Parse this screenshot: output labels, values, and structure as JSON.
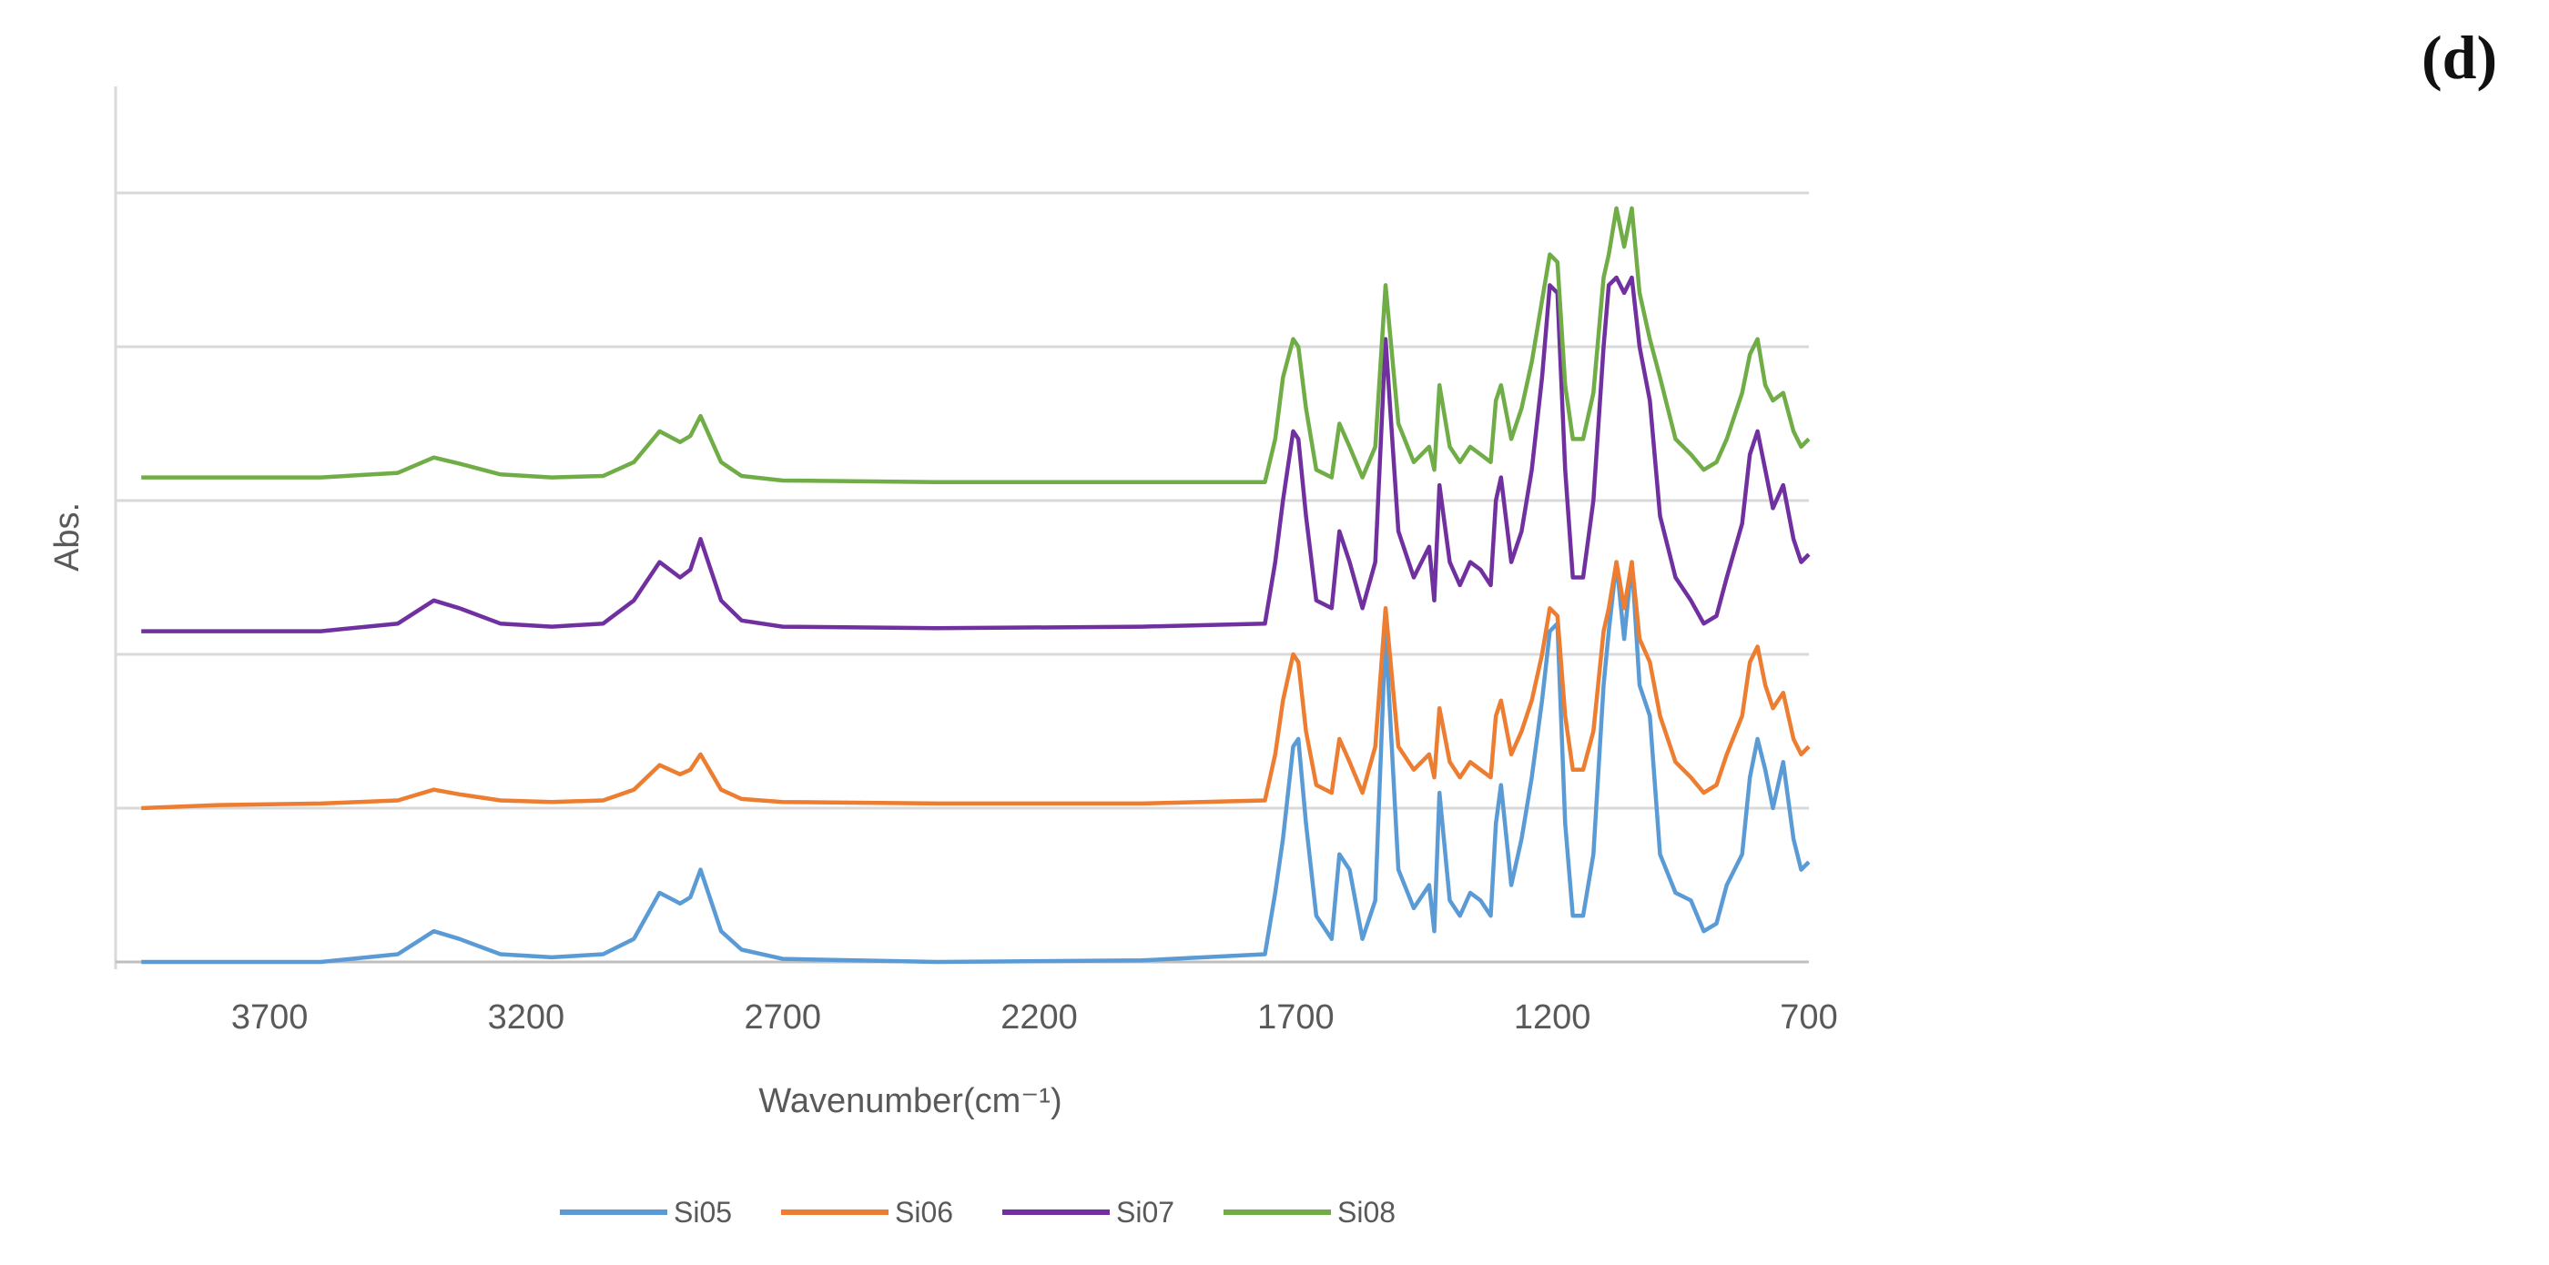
{
  "panel_label": "(d)",
  "chart_data": {
    "type": "line",
    "title": "",
    "xlabel": "Wavenumber(cm⁻¹)",
    "ylabel": "Abs.",
    "x_reversed": true,
    "xlim": [
      4000,
      700
    ],
    "ylim": [
      0,
      5
    ],
    "x_ticks": [
      3700,
      3200,
      2700,
      2200,
      1700,
      1200,
      700
    ],
    "y_gridlines": [
      1,
      2,
      3,
      4,
      5
    ],
    "y_tick_labels_shown": false,
    "grid": "horizontal",
    "legend_position": "bottom",
    "series": [
      {
        "name": "Si05",
        "color": "#5b9bd5",
        "x": [
          3950,
          3800,
          3600,
          3450,
          3380,
          3330,
          3250,
          3150,
          3050,
          2990,
          2940,
          2900,
          2880,
          2860,
          2820,
          2780,
          2700,
          2400,
          2000,
          1760,
          1740,
          1725,
          1705,
          1695,
          1680,
          1660,
          1630,
          1615,
          1595,
          1570,
          1545,
          1525,
          1500,
          1470,
          1440,
          1430,
          1420,
          1400,
          1380,
          1360,
          1340,
          1320,
          1310,
          1300,
          1280,
          1260,
          1240,
          1220,
          1205,
          1190,
          1175,
          1160,
          1140,
          1120,
          1100,
          1090,
          1075,
          1060,
          1045,
          1030,
          1010,
          990,
          960,
          930,
          905,
          880,
          860,
          830,
          815,
          800,
          785,
          770,
          750,
          730,
          715,
          700
        ],
        "y": [
          0.0,
          0.0,
          0.0,
          0.05,
          0.2,
          0.15,
          0.05,
          0.03,
          0.05,
          0.15,
          0.45,
          0.38,
          0.42,
          0.6,
          0.2,
          0.08,
          0.02,
          0.0,
          0.01,
          0.05,
          0.45,
          0.8,
          1.4,
          1.45,
          0.9,
          0.3,
          0.15,
          0.7,
          0.6,
          0.15,
          0.4,
          2.15,
          0.6,
          0.35,
          0.5,
          0.2,
          1.1,
          0.4,
          0.3,
          0.45,
          0.4,
          0.3,
          0.9,
          1.15,
          0.5,
          0.8,
          1.2,
          1.7,
          2.15,
          2.2,
          0.9,
          0.3,
          0.3,
          0.7,
          1.8,
          2.15,
          2.6,
          2.1,
          2.6,
          1.8,
          1.6,
          0.7,
          0.45,
          0.4,
          0.2,
          0.25,
          0.5,
          0.7,
          1.2,
          1.45,
          1.25,
          1.0,
          1.3,
          0.8,
          0.6,
          0.65
        ]
      },
      {
        "name": "Si06",
        "color": "#ed7d31",
        "x": [
          3950,
          3800,
          3600,
          3450,
          3380,
          3330,
          3250,
          3150,
          3050,
          2990,
          2940,
          2900,
          2880,
          2860,
          2820,
          2780,
          2700,
          2400,
          2000,
          1760,
          1740,
          1725,
          1705,
          1695,
          1680,
          1660,
          1630,
          1615,
          1595,
          1570,
          1545,
          1525,
          1500,
          1470,
          1440,
          1430,
          1420,
          1400,
          1380,
          1360,
          1340,
          1320,
          1310,
          1300,
          1280,
          1260,
          1240,
          1220,
          1205,
          1190,
          1175,
          1160,
          1140,
          1120,
          1100,
          1090,
          1075,
          1060,
          1045,
          1030,
          1010,
          990,
          960,
          930,
          905,
          880,
          860,
          830,
          815,
          800,
          785,
          770,
          750,
          730,
          715,
          700
        ],
        "y": [
          1.0,
          1.02,
          1.03,
          1.05,
          1.12,
          1.09,
          1.05,
          1.04,
          1.05,
          1.12,
          1.28,
          1.22,
          1.25,
          1.35,
          1.12,
          1.06,
          1.04,
          1.03,
          1.03,
          1.05,
          1.35,
          1.7,
          2.0,
          1.95,
          1.5,
          1.15,
          1.1,
          1.45,
          1.3,
          1.1,
          1.4,
          2.3,
          1.4,
          1.25,
          1.35,
          1.2,
          1.65,
          1.3,
          1.2,
          1.3,
          1.25,
          1.2,
          1.6,
          1.7,
          1.35,
          1.5,
          1.7,
          2.0,
          2.3,
          2.25,
          1.6,
          1.25,
          1.25,
          1.5,
          2.15,
          2.3,
          2.6,
          2.3,
          2.6,
          2.1,
          1.95,
          1.6,
          1.3,
          1.2,
          1.1,
          1.15,
          1.35,
          1.6,
          1.95,
          2.05,
          1.8,
          1.65,
          1.75,
          1.45,
          1.35,
          1.4
        ]
      },
      {
        "name": "Si07",
        "color": "#7030a0",
        "x": [
          3950,
          3800,
          3600,
          3450,
          3380,
          3330,
          3250,
          3150,
          3050,
          2990,
          2940,
          2900,
          2880,
          2860,
          2820,
          2780,
          2700,
          2400,
          2000,
          1760,
          1740,
          1725,
          1705,
          1695,
          1680,
          1660,
          1630,
          1615,
          1595,
          1570,
          1545,
          1525,
          1500,
          1470,
          1440,
          1430,
          1420,
          1400,
          1380,
          1360,
          1340,
          1320,
          1310,
          1300,
          1280,
          1260,
          1240,
          1220,
          1205,
          1190,
          1175,
          1160,
          1140,
          1120,
          1100,
          1090,
          1075,
          1060,
          1045,
          1030,
          1010,
          990,
          960,
          930,
          905,
          880,
          860,
          830,
          815,
          800,
          785,
          770,
          750,
          730,
          715,
          700
        ],
        "y": [
          2.15,
          2.15,
          2.15,
          2.2,
          2.35,
          2.3,
          2.2,
          2.18,
          2.2,
          2.35,
          2.6,
          2.5,
          2.55,
          2.75,
          2.35,
          2.22,
          2.18,
          2.17,
          2.18,
          2.2,
          2.6,
          3.0,
          3.45,
          3.4,
          2.9,
          2.35,
          2.3,
          2.8,
          2.6,
          2.3,
          2.6,
          4.05,
          2.8,
          2.5,
          2.7,
          2.35,
          3.1,
          2.6,
          2.45,
          2.6,
          2.55,
          2.45,
          3.0,
          3.15,
          2.6,
          2.8,
          3.2,
          3.8,
          4.4,
          4.35,
          3.2,
          2.5,
          2.5,
          3.0,
          4.0,
          4.4,
          4.45,
          4.35,
          4.45,
          4.0,
          3.65,
          2.9,
          2.5,
          2.35,
          2.2,
          2.25,
          2.5,
          2.85,
          3.3,
          3.45,
          3.2,
          2.95,
          3.1,
          2.75,
          2.6,
          2.65
        ]
      },
      {
        "name": "Si08",
        "color": "#70ad47",
        "x": [
          3950,
          3800,
          3600,
          3450,
          3380,
          3330,
          3250,
          3150,
          3050,
          2990,
          2940,
          2900,
          2880,
          2860,
          2820,
          2780,
          2700,
          2400,
          2000,
          1760,
          1740,
          1725,
          1705,
          1695,
          1680,
          1660,
          1630,
          1615,
          1595,
          1570,
          1545,
          1525,
          1500,
          1470,
          1440,
          1430,
          1420,
          1400,
          1380,
          1360,
          1340,
          1320,
          1310,
          1300,
          1280,
          1260,
          1240,
          1220,
          1205,
          1190,
          1175,
          1160,
          1140,
          1120,
          1100,
          1090,
          1075,
          1060,
          1045,
          1030,
          1010,
          990,
          960,
          930,
          905,
          880,
          860,
          830,
          815,
          800,
          785,
          770,
          750,
          730,
          715,
          700
        ],
        "y": [
          3.15,
          3.15,
          3.15,
          3.18,
          3.28,
          3.24,
          3.17,
          3.15,
          3.16,
          3.25,
          3.45,
          3.38,
          3.42,
          3.55,
          3.25,
          3.16,
          3.13,
          3.12,
          3.12,
          3.12,
          3.4,
          3.8,
          4.05,
          4.0,
          3.6,
          3.2,
          3.15,
          3.5,
          3.35,
          3.15,
          3.35,
          4.4,
          3.5,
          3.25,
          3.35,
          3.2,
          3.75,
          3.35,
          3.25,
          3.35,
          3.3,
          3.25,
          3.65,
          3.75,
          3.4,
          3.6,
          3.9,
          4.3,
          4.6,
          4.55,
          3.75,
          3.4,
          3.4,
          3.7,
          4.45,
          4.6,
          4.9,
          4.65,
          4.9,
          4.35,
          4.05,
          3.8,
          3.4,
          3.3,
          3.2,
          3.25,
          3.4,
          3.7,
          3.95,
          4.05,
          3.75,
          3.65,
          3.7,
          3.45,
          3.35,
          3.4
        ]
      }
    ]
  }
}
